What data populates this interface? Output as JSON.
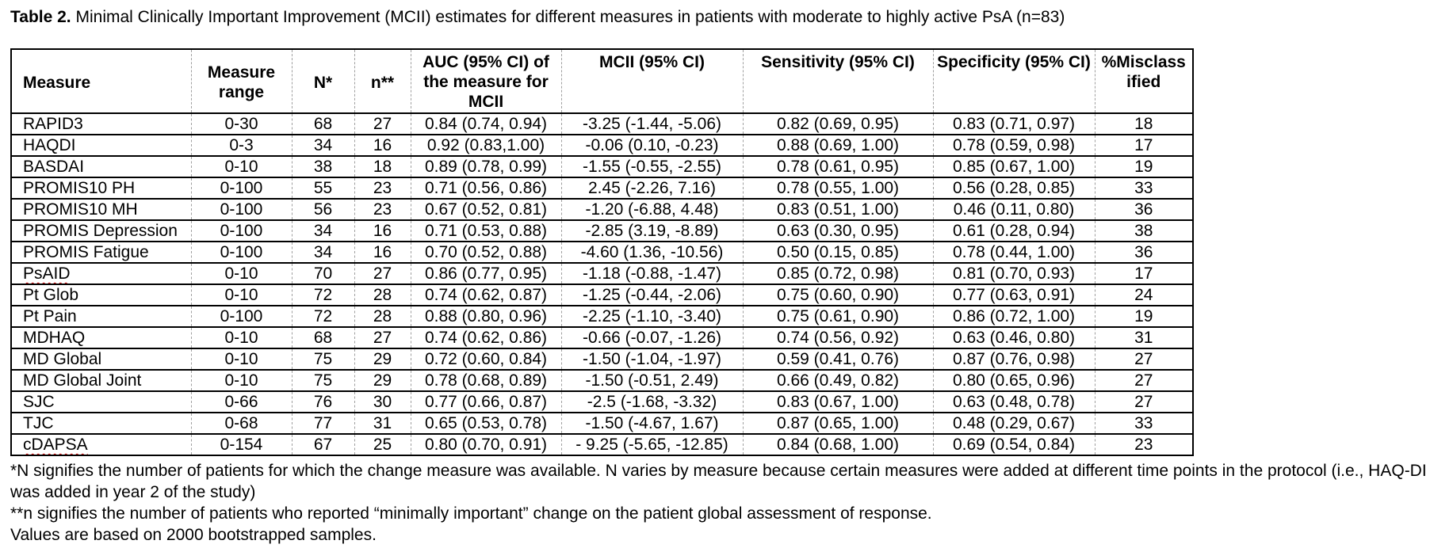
{
  "title": {
    "label": "Table 2.",
    "text": "Minimal Clinically Important Improvement (MCII) estimates for different measures in patients with moderate to highly active PsA (n=83)"
  },
  "table": {
    "columns": [
      {
        "key": "measure",
        "label": "Measure"
      },
      {
        "key": "range",
        "label": "Measure range"
      },
      {
        "key": "N",
        "label": "N*"
      },
      {
        "key": "n",
        "label": "n**"
      },
      {
        "key": "auc",
        "label": "AUC (95% CI) of the measure for MCII"
      },
      {
        "key": "mcii",
        "label": "MCII (95% CI)"
      },
      {
        "key": "sensitivity",
        "label": "Sensitivity (95% CI)"
      },
      {
        "key": "specificity",
        "label": "Specificity (95% CI)"
      },
      {
        "key": "misclassified",
        "label": "%Misclassified"
      }
    ],
    "rows": [
      {
        "measure": "RAPID3",
        "range": "0-30",
        "N": "68",
        "n": "27",
        "auc": "0.84 (0.74, 0.94)",
        "mcii": "-3.25 (-1.44, -5.06)",
        "sensitivity": "0.82 (0.69, 0.95)",
        "specificity": "0.83 (0.71, 0.97)",
        "misclassified": "18",
        "spellcheck_flagged": false
      },
      {
        "measure": "HAQDI",
        "range": "0-3",
        "N": "34",
        "n": "16",
        "auc": "0.92 (0.83,1.00)",
        "mcii": "-0.06 (0.10, -0.23)",
        "sensitivity": "0.88 (0.69, 1.00)",
        "specificity": "0.78 (0.59, 0.98)",
        "misclassified": "17",
        "spellcheck_flagged": false
      },
      {
        "measure": "BASDAI",
        "range": "0-10",
        "N": "38",
        "n": "18",
        "auc": "0.89 (0.78, 0.99)",
        "mcii": "-1.55 (-0.55, -2.55)",
        "sensitivity": "0.78 (0.61, 0.95)",
        "specificity": "0.85 (0.67, 1.00)",
        "misclassified": "19",
        "spellcheck_flagged": false
      },
      {
        "measure": "PROMIS10 PH",
        "range": "0-100",
        "N": "55",
        "n": "23",
        "auc": "0.71 (0.56, 0.86)",
        "mcii": "2.45 (-2.26, 7.16)",
        "sensitivity": "0.78 (0.55, 1.00)",
        "specificity": "0.56 (0.28, 0.85)",
        "misclassified": "33",
        "spellcheck_flagged": false
      },
      {
        "measure": "PROMIS10 MH",
        "range": "0-100",
        "N": "56",
        "n": "23",
        "auc": "0.67 (0.52, 0.81)",
        "mcii": "-1.20 (-6.88, 4.48)",
        "sensitivity": "0.83 (0.51, 1.00)",
        "specificity": "0.46 (0.11, 0.80)",
        "misclassified": "36",
        "spellcheck_flagged": false
      },
      {
        "measure": "PROMIS Depression",
        "range": "0-100",
        "N": "34",
        "n": "16",
        "auc": "0.71 (0.53, 0.88)",
        "mcii": "-2.85 (3.19, -8.89)",
        "sensitivity": "0.63 (0.30, 0.95)",
        "specificity": "0.61 (0.28, 0.94)",
        "misclassified": "38",
        "spellcheck_flagged": false
      },
      {
        "measure": "PROMIS Fatigue",
        "range": "0-100",
        "N": "34",
        "n": "16",
        "auc": "0.70 (0.52, 0.88)",
        "mcii": "-4.60 (1.36, -10.56)",
        "sensitivity": "0.50 (0.15, 0.85)",
        "specificity": "0.78 (0.44, 1.00)",
        "misclassified": "36",
        "spellcheck_flagged": false
      },
      {
        "measure": "PsAID",
        "range": "0-10",
        "N": "70",
        "n": "27",
        "auc": "0.86 (0.77, 0.95)",
        "mcii": "-1.18 (-0.88, -1.47)",
        "sensitivity": "0.85 (0.72, 0.98)",
        "specificity": "0.81 (0.70, 0.93)",
        "misclassified": "17",
        "spellcheck_flagged": true
      },
      {
        "measure": "Pt Glob",
        "range": "0-10",
        "N": "72",
        "n": "28",
        "auc": "0.74 (0.62, 0.87)",
        "mcii": "-1.25 (-0.44, -2.06)",
        "sensitivity": "0.75 (0.60, 0.90)",
        "specificity": "0.77 (0.63, 0.91)",
        "misclassified": "24",
        "spellcheck_flagged": false
      },
      {
        "measure": "Pt Pain",
        "range": "0-100",
        "N": "72",
        "n": "28",
        "auc": "0.88 (0.80, 0.96)",
        "mcii": "-2.25 (-1.10, -3.40)",
        "sensitivity": "0.75 (0.61, 0.90)",
        "specificity": "0.86 (0.72, 1.00)",
        "misclassified": "19",
        "spellcheck_flagged": false
      },
      {
        "measure": "MDHAQ",
        "range": "0-10",
        "N": "68",
        "n": "27",
        "auc": "0.74 (0.62, 0.86)",
        "mcii": "-0.66 (-0.07, -1.26)",
        "sensitivity": "0.74 (0.56, 0.92)",
        "specificity": "0.63 (0.46, 0.80)",
        "misclassified": "31",
        "spellcheck_flagged": false
      },
      {
        "measure": "MD Global",
        "range": "0-10",
        "N": "75",
        "n": "29",
        "auc": "0.72 (0.60, 0.84)",
        "mcii": "-1.50 (-1.04, -1.97)",
        "sensitivity": "0.59 (0.41, 0.76)",
        "specificity": "0.87 (0.76, 0.98)",
        "misclassified": "27",
        "spellcheck_flagged": false
      },
      {
        "measure": "MD Global Joint",
        "range": "0-10",
        "N": "75",
        "n": "29",
        "auc": "0.78 (0.68, 0.89)",
        "mcii": "-1.50 (-0.51, 2.49)",
        "sensitivity": "0.66 (0.49, 0.82)",
        "specificity": "0.80 (0.65, 0.96)",
        "misclassified": "27",
        "spellcheck_flagged": false
      },
      {
        "measure": "SJC",
        "range": "0-66",
        "N": "76",
        "n": "30",
        "auc": "0.77 (0.66, 0.87)",
        "mcii": "-2.5 (-1.68, -3.32)",
        "sensitivity": "0.83 (0.67, 1.00)",
        "specificity": "0.63 (0.48, 0.78)",
        "misclassified": "27",
        "spellcheck_flagged": false
      },
      {
        "measure": "TJC",
        "range": "0-68",
        "N": "77",
        "n": "31",
        "auc": "0.65 (0.53, 0.78)",
        "mcii": "-1.50 (-4.67, 1.67)",
        "sensitivity": "0.87 (0.65, 1.00)",
        "specificity": "0.48 (0.29, 0.67)",
        "misclassified": "33",
        "spellcheck_flagged": false
      },
      {
        "measure": "cDAPSA",
        "range": "0-154",
        "N": "67",
        "n": "25",
        "auc": "0.80 (0.70, 0.91)",
        "mcii": "- 9.25 (-5.65, -12.85)",
        "sensitivity": "0.84 (0.68, 1.00)",
        "specificity": "0.69 (0.54, 0.84)",
        "misclassified": "23",
        "spellcheck_flagged": true
      }
    ]
  },
  "footnotes": [
    "*N signifies the number of patients for which the change measure was available. N varies by measure because certain measures were added at different time points in the protocol (i.e., HAQ-DI was added in year 2 of the study)",
    "**n signifies the number of patients who reported “minimally important” change on the patient global assessment of response.",
    "Values are based on 2000 bootstrapped samples."
  ]
}
